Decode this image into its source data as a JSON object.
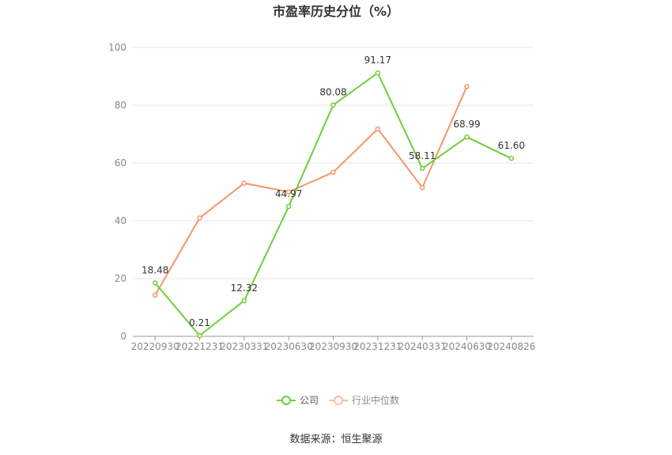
{
  "chart_data": {
    "type": "line",
    "title": "市盈率历史分位（%）",
    "xlabel": "",
    "ylabel": "",
    "ylim": [
      0,
      100
    ],
    "yticks": [
      0,
      20,
      40,
      60,
      80,
      100
    ],
    "grid": true,
    "legend_position": "bottom-center",
    "categories": [
      "20220930",
      "20221231",
      "20230331",
      "20230630",
      "20230930",
      "20231231",
      "20240331",
      "20240630",
      "20240826"
    ],
    "series": [
      {
        "name": "公司",
        "color": "#6fcf3a",
        "values": [
          18.48,
          0.21,
          12.32,
          44.97,
          80.08,
          91.17,
          58.11,
          68.99,
          61.6
        ],
        "labels": [
          "18.48",
          "0.21",
          "12.32",
          "44.97",
          "80.08",
          "91.17",
          "58.11",
          "68.99",
          "61.60"
        ]
      },
      {
        "name": "行业中位数",
        "color": "#f4956a",
        "values": [
          14.2,
          41.0,
          53.0,
          50.0,
          56.8,
          71.8,
          51.5,
          86.5,
          null
        ]
      }
    ],
    "source": "数据来源：恒生聚源"
  }
}
